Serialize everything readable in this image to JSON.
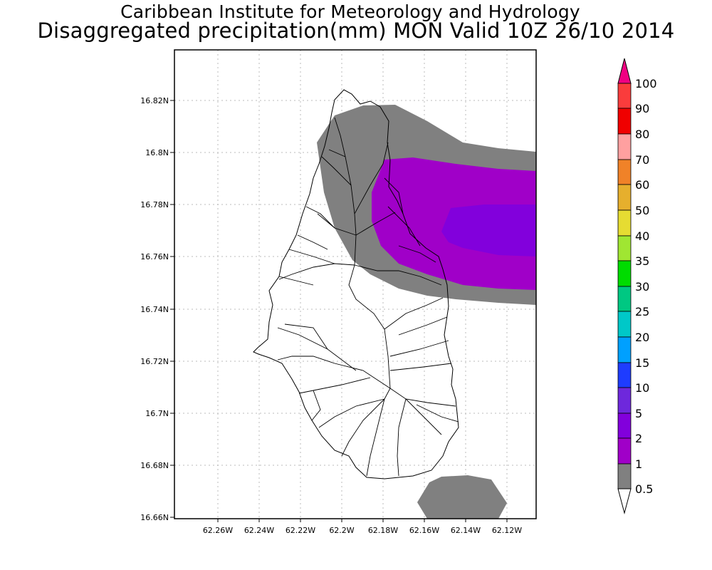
{
  "title_line1": "Caribbean Institute for Meteorology and Hydrology",
  "title_line2": "Disaggregated precipitation(mm) MON Valid 10Z 26/10 2014",
  "map": {
    "lat_ticks": [
      "16.82N",
      "16.8N",
      "16.78N",
      "16.76N",
      "16.74N",
      "16.72N",
      "16.7N",
      "16.68N",
      "16.66N"
    ],
    "lon_ticks": [
      "62.26W",
      "62.24W",
      "62.22W",
      "62.2W",
      "62.18W",
      "62.16W",
      "62.14W",
      "62.12W"
    ],
    "grid": "dotted",
    "shaded_levels_present": [
      {
        "range": "0.5-1",
        "color": "#808080"
      },
      {
        "range": "1-2",
        "color": "#a000c8"
      },
      {
        "range": "2-5",
        "color": "#8200dc"
      }
    ]
  },
  "colorbar": {
    "labels": [
      "100",
      "90",
      "80",
      "70",
      "60",
      "50",
      "40",
      "35",
      "30",
      "25",
      "20",
      "15",
      "10",
      "5",
      "2",
      "1",
      "0.5"
    ],
    "colors": [
      "#f00082",
      "#fa3c3c",
      "#f00000",
      "#ffa0a0",
      "#f08228",
      "#e6af2d",
      "#e6dc32",
      "#a0e632",
      "#00dc00",
      "#00c882",
      "#00c8c8",
      "#00a0ff",
      "#1e3cff",
      "#6e28dc",
      "#8200dc",
      "#a000c8",
      "#808080",
      "#ffffff"
    ]
  }
}
